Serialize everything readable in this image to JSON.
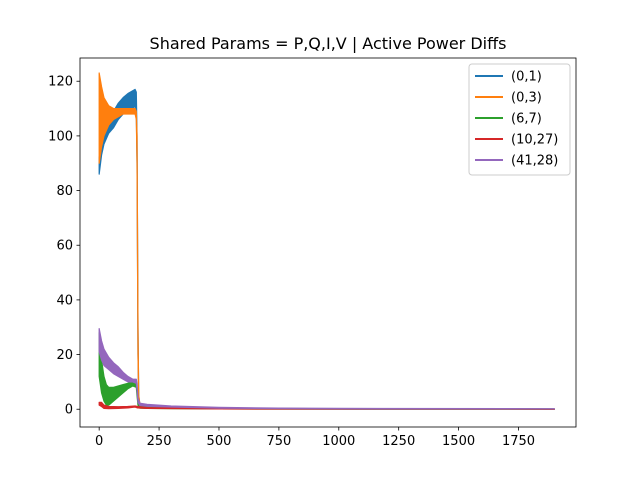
{
  "chart_data": {
    "type": "line",
    "title": "Shared Params = P,Q,I,V | Active Power Diffs",
    "xlabel": "",
    "ylabel": "",
    "xlim": [
      -80,
      1990
    ],
    "ylim": [
      -6.5,
      128.5
    ],
    "xticks": [
      0,
      250,
      500,
      750,
      1000,
      1250,
      1500,
      1750
    ],
    "yticks": [
      0,
      20,
      40,
      60,
      80,
      100,
      120
    ],
    "grid": false,
    "legend_position": "top-right",
    "series": [
      {
        "name": "(0,1)",
        "color": "#1f77b4",
        "upper": [
          [
            0,
            92
          ],
          [
            10,
            96
          ],
          [
            20,
            100
          ],
          [
            40,
            106
          ],
          [
            60,
            109
          ],
          [
            80,
            112
          ],
          [
            100,
            114
          ],
          [
            120,
            115.5
          ],
          [
            140,
            116.5
          ],
          [
            150,
            117
          ],
          [
            155,
            116
          ],
          [
            158,
            100
          ],
          [
            162,
            30
          ],
          [
            165,
            5
          ],
          [
            170,
            1.8
          ],
          [
            200,
            1.2
          ],
          [
            300,
            0.8
          ],
          [
            500,
            0.4
          ],
          [
            1000,
            0.2
          ],
          [
            1900,
            0.1
          ]
        ],
        "lower": [
          [
            0,
            86
          ],
          [
            10,
            93
          ],
          [
            20,
            97
          ],
          [
            40,
            101
          ],
          [
            60,
            103
          ],
          [
            80,
            106
          ],
          [
            100,
            108
          ],
          [
            120,
            109
          ],
          [
            140,
            110
          ],
          [
            150,
            111
          ],
          [
            155,
            108
          ],
          [
            158,
            90
          ],
          [
            162,
            20
          ],
          [
            165,
            3
          ],
          [
            170,
            0.8
          ],
          [
            200,
            0.6
          ],
          [
            300,
            0.4
          ],
          [
            500,
            0.2
          ],
          [
            1000,
            0.1
          ],
          [
            1900,
            0.05
          ]
        ]
      },
      {
        "name": "(0,3)",
        "color": "#ff7f0e",
        "upper": [
          [
            0,
            123
          ],
          [
            10,
            118
          ],
          [
            20,
            114
          ],
          [
            40,
            111
          ],
          [
            60,
            110
          ],
          [
            80,
            110
          ],
          [
            100,
            110
          ],
          [
            120,
            110
          ],
          [
            140,
            110
          ],
          [
            150,
            110
          ],
          [
            155,
            109
          ],
          [
            158,
            100
          ],
          [
            162,
            30
          ],
          [
            165,
            5
          ],
          [
            170,
            1.8
          ],
          [
            200,
            1.3
          ],
          [
            300,
            0.8
          ],
          [
            500,
            0.4
          ],
          [
            1000,
            0.2
          ],
          [
            1900,
            0.1
          ]
        ],
        "lower": [
          [
            0,
            90
          ],
          [
            10,
            96
          ],
          [
            20,
            100
          ],
          [
            40,
            104
          ],
          [
            60,
            106
          ],
          [
            80,
            107
          ],
          [
            100,
            108
          ],
          [
            120,
            108
          ],
          [
            140,
            108
          ],
          [
            150,
            108
          ],
          [
            155,
            106
          ],
          [
            158,
            90
          ],
          [
            162,
            20
          ],
          [
            165,
            3
          ],
          [
            170,
            0.8
          ],
          [
            200,
            0.6
          ],
          [
            300,
            0.4
          ],
          [
            500,
            0.2
          ],
          [
            1000,
            0.1
          ],
          [
            1900,
            0.05
          ]
        ]
      },
      {
        "name": "(6,7)",
        "color": "#2ca02c",
        "upper": [
          [
            0,
            28
          ],
          [
            10,
            18
          ],
          [
            20,
            12
          ],
          [
            30,
            9
          ],
          [
            40,
            8
          ],
          [
            60,
            8
          ],
          [
            80,
            8.5
          ],
          [
            100,
            9
          ],
          [
            120,
            9.5
          ],
          [
            140,
            10
          ],
          [
            155,
            10
          ],
          [
            158,
            8
          ],
          [
            162,
            3
          ],
          [
            170,
            1.2
          ],
          [
            200,
            0.8
          ],
          [
            300,
            0.5
          ],
          [
            500,
            0.3
          ],
          [
            1000,
            0.15
          ],
          [
            1900,
            0.1
          ]
        ],
        "lower": [
          [
            0,
            12
          ],
          [
            10,
            6
          ],
          [
            20,
            3
          ],
          [
            30,
            1.5
          ],
          [
            40,
            1.5
          ],
          [
            60,
            3
          ],
          [
            80,
            4.5
          ],
          [
            100,
            6
          ],
          [
            120,
            7.5
          ],
          [
            140,
            8.5
          ],
          [
            155,
            8
          ],
          [
            158,
            5
          ],
          [
            162,
            1.5
          ],
          [
            170,
            0.4
          ],
          [
            200,
            0.3
          ],
          [
            300,
            0.2
          ],
          [
            500,
            0.1
          ],
          [
            1000,
            0.05
          ],
          [
            1900,
            0.02
          ]
        ]
      },
      {
        "name": "(10,27)",
        "color": "#d62728",
        "upper": [
          [
            0,
            2.5
          ],
          [
            10,
            2.5
          ],
          [
            20,
            1.5
          ],
          [
            40,
            1.0
          ],
          [
            80,
            0.9
          ],
          [
            120,
            1.0
          ],
          [
            150,
            1.2
          ],
          [
            160,
            1.0
          ],
          [
            200,
            0.6
          ],
          [
            500,
            0.3
          ],
          [
            1000,
            0.15
          ],
          [
            1900,
            0.05
          ]
        ],
        "lower": [
          [
            0,
            1.5
          ],
          [
            10,
            1.0
          ],
          [
            20,
            0.3
          ],
          [
            40,
            0.2
          ],
          [
            80,
            0.3
          ],
          [
            120,
            0.5
          ],
          [
            150,
            0.8
          ],
          [
            160,
            0.5
          ],
          [
            200,
            0.3
          ],
          [
            500,
            0.1
          ],
          [
            1000,
            0.05
          ],
          [
            1900,
            0.0
          ]
        ]
      },
      {
        "name": "(41,28)",
        "color": "#9467bd",
        "upper": [
          [
            0,
            29.5
          ],
          [
            10,
            25
          ],
          [
            20,
            22
          ],
          [
            40,
            19
          ],
          [
            60,
            17
          ],
          [
            80,
            15.5
          ],
          [
            100,
            13.5
          ],
          [
            120,
            12
          ],
          [
            140,
            11
          ],
          [
            155,
            11
          ],
          [
            158,
            9
          ],
          [
            162,
            4
          ],
          [
            170,
            2.2
          ],
          [
            200,
            1.8
          ],
          [
            300,
            1.2
          ],
          [
            500,
            0.7
          ],
          [
            750,
            0.4
          ],
          [
            1000,
            0.3
          ],
          [
            1900,
            0.2
          ]
        ],
        "lower": [
          [
            0,
            21
          ],
          [
            10,
            18
          ],
          [
            20,
            16
          ],
          [
            40,
            14.5
          ],
          [
            60,
            13
          ],
          [
            80,
            12
          ],
          [
            100,
            11
          ],
          [
            120,
            10
          ],
          [
            140,
            10
          ],
          [
            155,
            9.5
          ],
          [
            158,
            7
          ],
          [
            162,
            2.5
          ],
          [
            170,
            1.4
          ],
          [
            200,
            1.1
          ],
          [
            300,
            0.8
          ],
          [
            500,
            0.4
          ],
          [
            750,
            0.25
          ],
          [
            1000,
            0.15
          ],
          [
            1900,
            0.1
          ]
        ]
      }
    ]
  }
}
